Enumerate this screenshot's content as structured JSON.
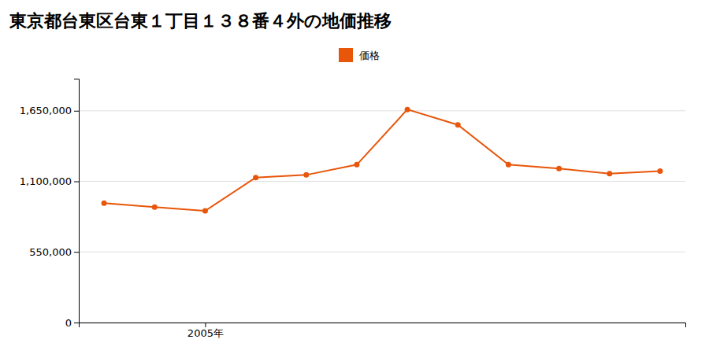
{
  "chart_data": {
    "type": "line",
    "title": "東京都台東区台東１丁目１３８番４外の地価推移",
    "x": [
      2003,
      2004,
      2005,
      2006,
      2007,
      2008,
      2009,
      2010,
      2011,
      2012,
      2013,
      2014
    ],
    "series": [
      {
        "name": "価格",
        "color": "#e8560a",
        "marker": "circle",
        "values": [
          930000,
          900000,
          870000,
          1130000,
          1150000,
          1230000,
          1660000,
          1540000,
          1230000,
          1200000,
          1160000,
          1180000
        ]
      }
    ],
    "xlim": [
      2002.5,
      2014.5
    ],
    "xticks": [
      {
        "value": 2005,
        "label": "2005年"
      }
    ],
    "ylim": [
      0,
      1900000
    ],
    "yticks": [
      0,
      {
        "value": 550000,
        "label": "550,000"
      },
      {
        "value": 1100000,
        "label": "1,100,000"
      },
      {
        "value": 1650000,
        "label": "1,650,000"
      }
    ],
    "grid": true,
    "legend": "top"
  }
}
